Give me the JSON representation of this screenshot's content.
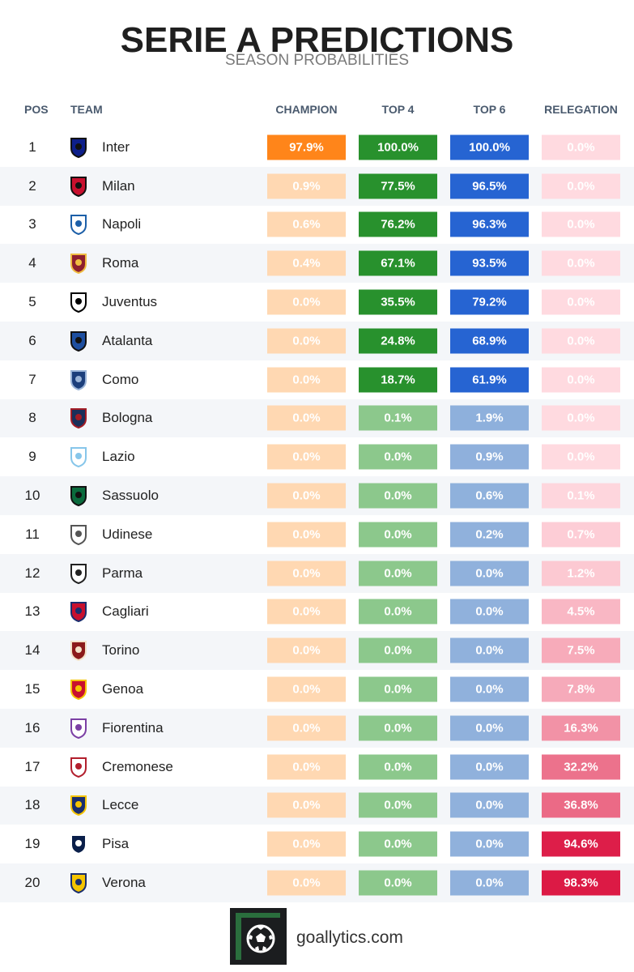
{
  "header": {
    "title": "SERIE A PREDICTIONS",
    "subtitle": "SEASON PROBABILITIES"
  },
  "columns": {
    "pos": "POS",
    "team": "TEAM",
    "champion": "CHAMPION",
    "top4": "TOP 4",
    "top6": "TOP 6",
    "relegation": "RELEGATION"
  },
  "colors": {
    "champion": "#ff8a1a",
    "top4": "#2b9a33",
    "top6": "#2c6cd6",
    "relegation": "#dc1e46"
  },
  "chart_data": {
    "type": "table",
    "title": "SERIE A PREDICTIONS",
    "subtitle": "SEASON PROBABILITIES",
    "columns": [
      "POS",
      "TEAM",
      "CHAMPION",
      "TOP 4",
      "TOP 6",
      "RELEGATION"
    ],
    "rows": [
      {
        "pos": "1",
        "team": "Inter",
        "icon": "inter-crest-icon",
        "champion": "97.9%",
        "top4": "100.0%",
        "top6": "100.0%",
        "relegation": "0.0%"
      },
      {
        "pos": "2",
        "team": "Milan",
        "icon": "milan-crest-icon",
        "champion": "0.9%",
        "top4": "77.5%",
        "top6": "96.5%",
        "relegation": "0.0%"
      },
      {
        "pos": "3",
        "team": "Napoli",
        "icon": "napoli-crest-icon",
        "champion": "0.6%",
        "top4": "76.2%",
        "top6": "96.3%",
        "relegation": "0.0%"
      },
      {
        "pos": "4",
        "team": "Roma",
        "icon": "roma-crest-icon",
        "champion": "0.4%",
        "top4": "67.1%",
        "top6": "93.5%",
        "relegation": "0.0%"
      },
      {
        "pos": "5",
        "team": "Juventus",
        "icon": "juventus-crest-icon",
        "champion": "0.0%",
        "top4": "35.5%",
        "top6": "79.2%",
        "relegation": "0.0%"
      },
      {
        "pos": "6",
        "team": "Atalanta",
        "icon": "atalanta-crest-icon",
        "champion": "0.0%",
        "top4": "24.8%",
        "top6": "68.9%",
        "relegation": "0.0%"
      },
      {
        "pos": "7",
        "team": "Como",
        "icon": "como-crest-icon",
        "champion": "0.0%",
        "top4": "18.7%",
        "top6": "61.9%",
        "relegation": "0.0%"
      },
      {
        "pos": "8",
        "team": "Bologna",
        "icon": "bologna-crest-icon",
        "champion": "0.0%",
        "top4": "0.1%",
        "top6": "1.9%",
        "relegation": "0.0%"
      },
      {
        "pos": "9",
        "team": "Lazio",
        "icon": "lazio-crest-icon",
        "champion": "0.0%",
        "top4": "0.0%",
        "top6": "0.9%",
        "relegation": "0.0%"
      },
      {
        "pos": "10",
        "team": "Sassuolo",
        "icon": "sassuolo-crest-icon",
        "champion": "0.0%",
        "top4": "0.0%",
        "top6": "0.6%",
        "relegation": "0.1%"
      },
      {
        "pos": "11",
        "team": "Udinese",
        "icon": "udinese-crest-icon",
        "champion": "0.0%",
        "top4": "0.0%",
        "top6": "0.2%",
        "relegation": "0.7%"
      },
      {
        "pos": "12",
        "team": "Parma",
        "icon": "parma-crest-icon",
        "champion": "0.0%",
        "top4": "0.0%",
        "top6": "0.0%",
        "relegation": "1.2%"
      },
      {
        "pos": "13",
        "team": "Cagliari",
        "icon": "cagliari-crest-icon",
        "champion": "0.0%",
        "top4": "0.0%",
        "top6": "0.0%",
        "relegation": "4.5%"
      },
      {
        "pos": "14",
        "team": "Torino",
        "icon": "torino-crest-icon",
        "champion": "0.0%",
        "top4": "0.0%",
        "top6": "0.0%",
        "relegation": "7.5%"
      },
      {
        "pos": "15",
        "team": "Genoa",
        "icon": "genoa-crest-icon",
        "champion": "0.0%",
        "top4": "0.0%",
        "top6": "0.0%",
        "relegation": "7.8%"
      },
      {
        "pos": "16",
        "team": "Fiorentina",
        "icon": "fiorentina-crest-icon",
        "champion": "0.0%",
        "top4": "0.0%",
        "top6": "0.0%",
        "relegation": "16.3%"
      },
      {
        "pos": "17",
        "team": "Cremonese",
        "icon": "cremonese-crest-icon",
        "champion": "0.0%",
        "top4": "0.0%",
        "top6": "0.0%",
        "relegation": "32.2%"
      },
      {
        "pos": "18",
        "team": "Lecce",
        "icon": "lecce-crest-icon",
        "champion": "0.0%",
        "top4": "0.0%",
        "top6": "0.0%",
        "relegation": "36.8%"
      },
      {
        "pos": "19",
        "team": "Pisa",
        "icon": "pisa-crest-icon",
        "champion": "0.0%",
        "top4": "0.0%",
        "top6": "0.0%",
        "relegation": "94.6%"
      },
      {
        "pos": "20",
        "team": "Verona",
        "icon": "verona-crest-icon",
        "champion": "0.0%",
        "top4": "0.0%",
        "top6": "0.0%",
        "relegation": "98.3%"
      }
    ]
  },
  "footer": {
    "brand": "goallytics.com",
    "logo_icon": "soccer-ball-icon"
  }
}
